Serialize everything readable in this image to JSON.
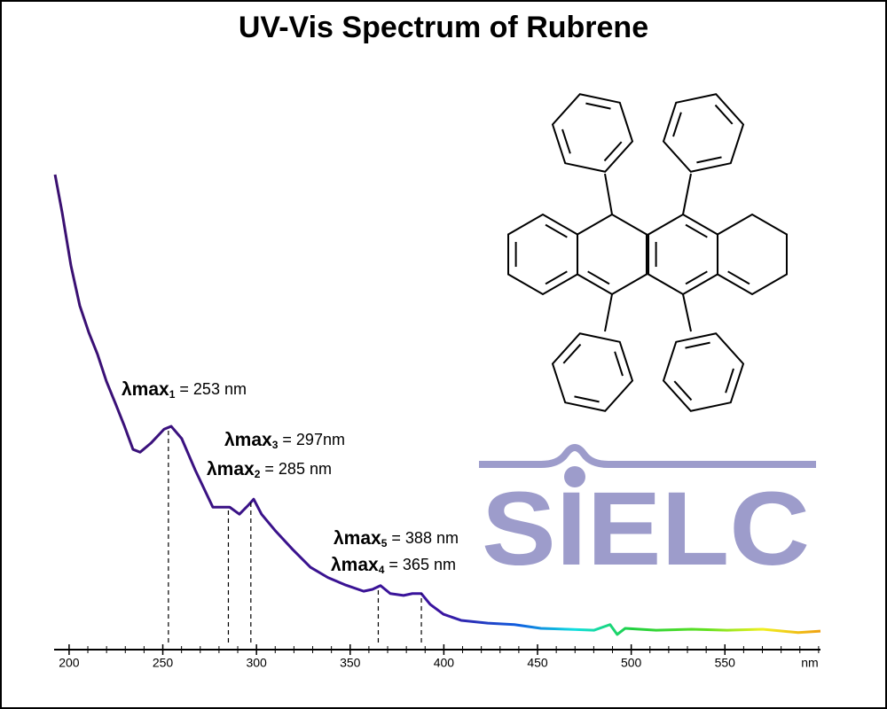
{
  "chart_data": {
    "type": "line",
    "title": "UV-Vis Spectrum of Rubrene",
    "x_label": "nm",
    "logo": "SIELC",
    "x": [
      192.5,
      196.3,
      201,
      205.7,
      210.5,
      215.2,
      219.9,
      224.7,
      229.4,
      234.1,
      237.9,
      243.6,
      250.7,
      254.5,
      260.1,
      267.2,
      276.7,
      285.7,
      290.9,
      295.6,
      298.5,
      302.7,
      309.8,
      319.3,
      328.8,
      338.2,
      347.7,
      357.2,
      361.9,
      366.2,
      371.4,
      378.5,
      383.2,
      388,
      392.7,
      399.8,
      409.2,
      423.4,
      437.6,
      451.8,
      466,
      480.2,
      488.7,
      492.5,
      496.8,
      513.3,
      532.3,
      551.2,
      570.1,
      589.1,
      601
    ],
    "values": [
      1.0,
      0.919,
      0.806,
      0.721,
      0.664,
      0.617,
      0.56,
      0.513,
      0.466,
      0.415,
      0.409,
      0.428,
      0.458,
      0.464,
      0.438,
      0.372,
      0.292,
      0.292,
      0.277,
      0.296,
      0.309,
      0.277,
      0.243,
      0.202,
      0.164,
      0.142,
      0.126,
      0.113,
      0.117,
      0.125,
      0.108,
      0.104,
      0.108,
      0.108,
      0.085,
      0.064,
      0.051,
      0.045,
      0.042,
      0.034,
      0.032,
      0.03,
      0.042,
      0.021,
      0.034,
      0.03,
      0.032,
      0.03,
      0.032,
      0.025,
      0.028
    ],
    "color_stops": [
      {
        "x": 192,
        "color": "#3a1070"
      },
      {
        "x": 400,
        "color": "#3a14a0"
      },
      {
        "x": 440,
        "color": "#1060e0"
      },
      {
        "x": 470,
        "color": "#10e0e0"
      },
      {
        "x": 500,
        "color": "#20d040"
      },
      {
        "x": 540,
        "color": "#60e020"
      },
      {
        "x": 570,
        "color": "#f0f020"
      },
      {
        "x": 601,
        "color": "#f0a010"
      }
    ],
    "xlim": [
      192,
      601
    ],
    "ylim": [
      0,
      1
    ],
    "xticks": [
      200,
      250,
      300,
      350,
      400,
      450,
      500,
      550
    ],
    "xminorticks": [
      200,
      210,
      220,
      230,
      240,
      250,
      260,
      270,
      280,
      290,
      300,
      310,
      320,
      330,
      340,
      350,
      360,
      370,
      380,
      390,
      400,
      410,
      420,
      430,
      440,
      450,
      460,
      470,
      480,
      490,
      500,
      510,
      520,
      530,
      540,
      550,
      560,
      570,
      580,
      590,
      600
    ],
    "annotations": [
      {
        "label": "λmax",
        "sub": "1",
        "text": "= 253 nm",
        "x": 253
      },
      {
        "label": "λmax",
        "sub": "2",
        "text": "= 285 nm",
        "x": 285
      },
      {
        "label": "λmax",
        "sub": "3",
        "text": "= 297nm",
        "x": 297
      },
      {
        "label": "λmax",
        "sub": "4",
        "text": "= 365 nm",
        "x": 365
      },
      {
        "label": "λmax",
        "sub": "5",
        "text": "= 388 nm",
        "x": 388
      }
    ]
  }
}
